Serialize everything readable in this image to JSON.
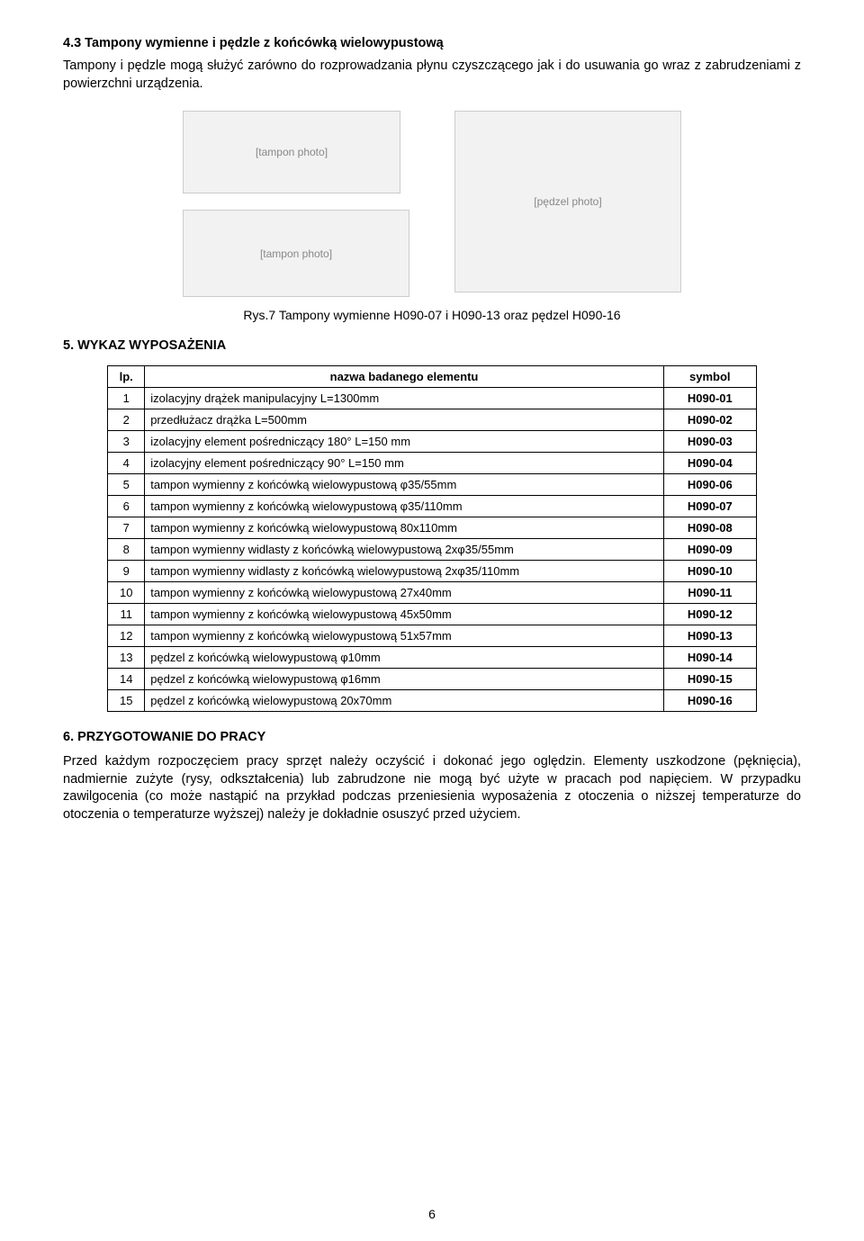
{
  "section43": {
    "title": "4.3  Tampony wymienne i pędzle z końcówką wielowypustową",
    "paragraph": "Tampony i pędzle mogą służyć zarówno do rozprowadzania płynu czyszczącego jak i do usuwania go wraz z zabrudzeniami z powierzchni urządzenia."
  },
  "figure_caption": "Rys.7 Tampony wymienne H090-07 i H090-13 oraz pędzel H090-16",
  "section5": {
    "title": "5. WYKAZ WYPOSAŻENIA",
    "header_lp": "lp.",
    "header_name": "nazwa badanego elementu",
    "header_symbol": "symbol",
    "rows": [
      {
        "n": "1",
        "name": "izolacyjny drążek manipulacyjny     L=1300mm",
        "sym": "H090-01"
      },
      {
        "n": "2",
        "name": "przedłużacz  drążka    L=500mm",
        "sym": "H090-02"
      },
      {
        "n": "3",
        "name": "izolacyjny element pośredniczący 180° L=150 mm",
        "sym": "H090-03"
      },
      {
        "n": "4",
        "name": "izolacyjny element pośredniczący  90° L=150 mm",
        "sym": "H090-04"
      },
      {
        "n": "5",
        "name": "tampon wymienny z końcówką wielowypustową φ35/55mm",
        "sym": "H090-06"
      },
      {
        "n": "6",
        "name": "tampon wymienny z końcówką wielowypustową φ35/110mm",
        "sym": "H090-07"
      },
      {
        "n": "7",
        "name": "tampon wymienny z końcówką wielowypustową 80x110mm",
        "sym": "H090-08"
      },
      {
        "n": "8",
        "name": "tampon wymienny widlasty z końcówką wielowypustową 2xφ35/55mm",
        "sym": "H090-09"
      },
      {
        "n": "9",
        "name": "tampon wymienny widlasty z końcówką wielowypustową  2xφ35/110mm",
        "sym": "H090-10"
      },
      {
        "n": "10",
        "name": "tampon wymienny z końcówką wielowypustową 27x40mm",
        "sym": "H090-11"
      },
      {
        "n": "11",
        "name": "tampon wymienny z końcówką wielowypustową 45x50mm",
        "sym": "H090-12"
      },
      {
        "n": "12",
        "name": "tampon wymienny z końcówką wielowypustową 51x57mm",
        "sym": "H090-13"
      },
      {
        "n": "13",
        "name": "pędzel z końcówką wielowypustową φ10mm",
        "sym": "H090-14"
      },
      {
        "n": "14",
        "name": "pędzel z końcówką wielowypustową φ16mm",
        "sym": "H090-15"
      },
      {
        "n": "15",
        "name": "pędzel z końcówką wielowypustową 20x70mm",
        "sym": "H090-16"
      }
    ]
  },
  "section6": {
    "title": "6. PRZYGOTOWANIE DO PRACY",
    "paragraph": "Przed każdym rozpoczęciem pracy sprzęt należy oczyścić i dokonać jego oględzin. Elementy uszkodzone (pęknięcia), nadmiernie zużyte (rysy, odkształcenia) lub zabrudzone nie mogą być użyte w pracach pod napięciem. W przypadku zawilgocenia (co może nastąpić na przykład podczas przeniesienia wyposażenia z otoczenia o niższej temperaturze do otoczenia o temperaturze wyższej) należy je dokładnie osuszyć przed użyciem."
  },
  "page_number": "6",
  "image_labels": {
    "img1": "[tampon photo]",
    "img2": "[tampon photo]",
    "img3": "[pędzel photo]"
  }
}
